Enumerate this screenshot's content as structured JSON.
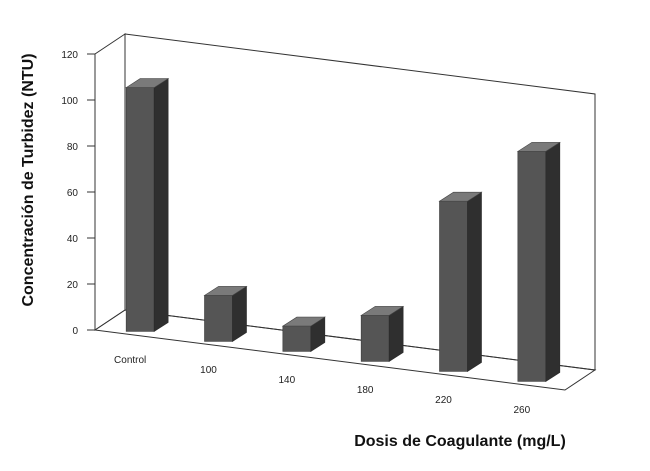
{
  "chart_data": {
    "type": "bar",
    "categories": [
      "Control",
      "100",
      "140",
      "180",
      "220",
      "260"
    ],
    "values": [
      106,
      20,
      11,
      20,
      74,
      100
    ],
    "xlabel": "Dosis de Coagulante (mg/L)",
    "ylabel": "Concentración de Turbidez (NTU)",
    "ylim": [
      0,
      120
    ],
    "yticks": [
      "0",
      "20",
      "40",
      "60",
      "80",
      "100",
      "120"
    ],
    "grid": false,
    "legend": "none",
    "colors": {
      "bar_front": "#555555",
      "bar_side": "#2f2f2f",
      "bar_top": "#7a7a7a",
      "frame": "#333333"
    }
  }
}
